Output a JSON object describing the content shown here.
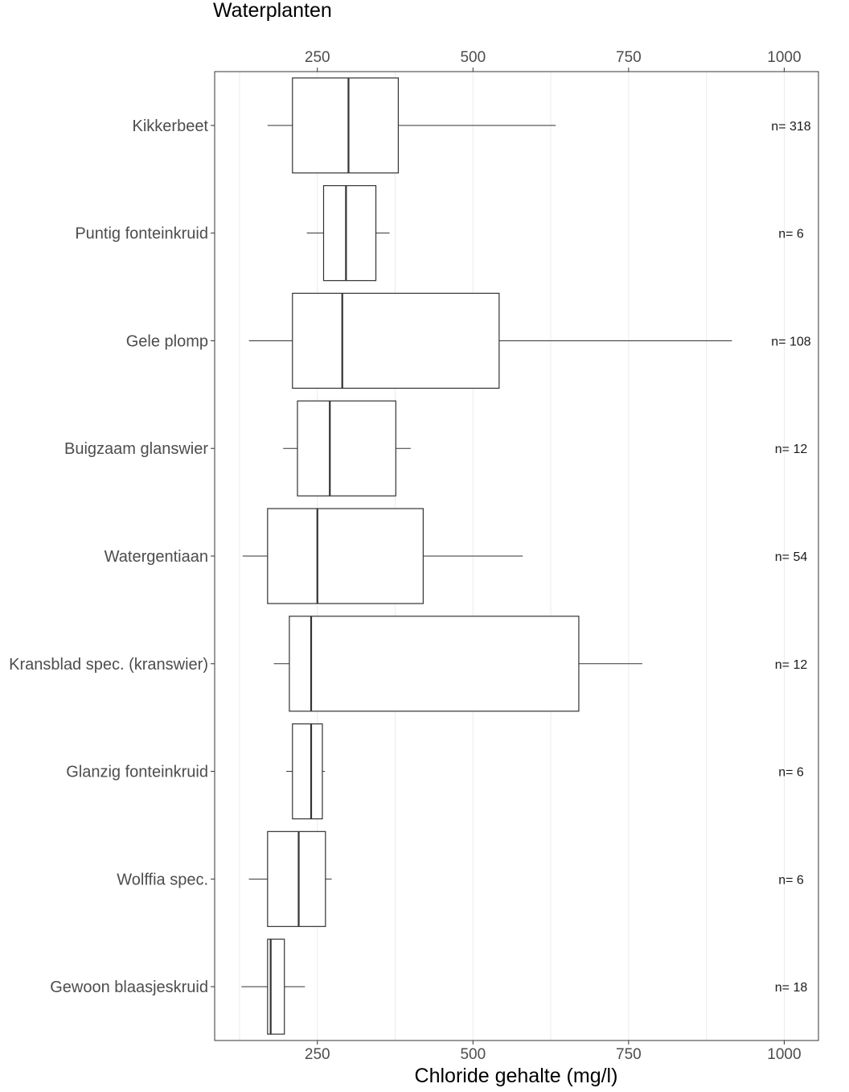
{
  "chart_data": {
    "type": "boxplot",
    "title": "Waterplanten",
    "xlabel": "Chloride gehalte (mg/l)",
    "ylabel": "",
    "xlim": [
      85,
      1055
    ],
    "x_ticks": [
      250,
      500,
      750,
      1000
    ],
    "x_tick_labels": [
      "250",
      "500",
      "750",
      "1000"
    ],
    "ticks_on_top_and_bottom": true,
    "grid": "vertical gridlines",
    "categories": [
      {
        "label": "Kikkerbeet",
        "n_label": "n= 318",
        "whisker_low": 170,
        "q1": 210,
        "median": 300,
        "q3": 380,
        "whisker_high": 633
      },
      {
        "label": "Puntig fonteinkruid",
        "n_label": "n= 6",
        "whisker_low": 233,
        "q1": 260,
        "median": 296,
        "q3": 344,
        "whisker_high": 366
      },
      {
        "label": "Gele plomp",
        "n_label": "n= 108",
        "whisker_low": 140,
        "q1": 210,
        "median": 290,
        "q3": 542,
        "whisker_high": 916
      },
      {
        "label": "Buigzaam glanswier",
        "n_label": "n= 12",
        "whisker_low": 195,
        "q1": 218,
        "median": 270,
        "q3": 376,
        "whisker_high": 400
      },
      {
        "label": "Watergentiaan",
        "n_label": "n= 54",
        "whisker_low": 130,
        "q1": 170,
        "median": 250,
        "q3": 420,
        "whisker_high": 580
      },
      {
        "label": "Kransblad spec. (kranswier)",
        "n_label": "n= 12",
        "whisker_low": 180,
        "q1": 205,
        "median": 240,
        "q3": 670,
        "whisker_high": 772
      },
      {
        "label": "Glanzig fonteinkruid",
        "n_label": "n= 6",
        "whisker_low": 200,
        "q1": 210,
        "median": 240,
        "q3": 258,
        "whisker_high": 262
      },
      {
        "label": "Wolffia spec.",
        "n_label": "n= 6",
        "whisker_low": 140,
        "q1": 170,
        "median": 220,
        "q3": 263,
        "whisker_high": 273
      },
      {
        "label": "Gewoon blaasjeskruid",
        "n_label": "n= 18",
        "whisker_low": 128,
        "q1": 170,
        "median": 175,
        "q3": 197,
        "whisker_high": 230
      }
    ]
  }
}
